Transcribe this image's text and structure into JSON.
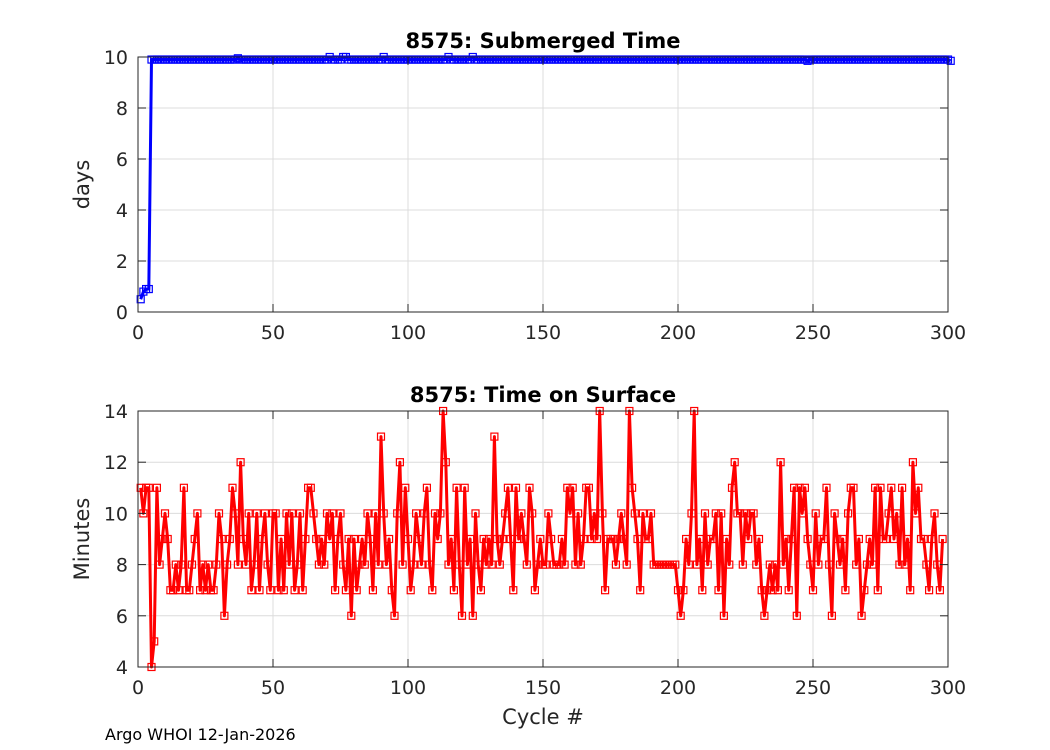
{
  "footer": "Argo WHOI 12-Jan-2026",
  "chart_data": [
    {
      "type": "line",
      "title": "8575: Submerged Time",
      "xlabel": "",
      "ylabel": "days",
      "xlim": [
        0,
        300
      ],
      "ylim": [
        0,
        10
      ],
      "xticks": [
        "0",
        "50",
        "100",
        "150",
        "200",
        "250",
        "300"
      ],
      "yticks": [
        "0",
        "2",
        "4",
        "6",
        "8",
        "10"
      ],
      "grid": true,
      "marker": "square",
      "color": "#0000ff",
      "series": [
        {
          "x": [
            1,
            2,
            3,
            4,
            5,
            6
          ],
          "y": [
            0.5,
            0.8,
            0.9,
            0.9,
            9.9,
            9.9
          ],
          "rest": {
            "x_start": 7,
            "x_end": 295,
            "values": [
              9.9,
              9.9,
              9.9,
              9.9,
              9.9,
              9.9,
              9.9,
              9.9,
              9.9,
              9.9,
              9.9,
              9.9,
              9.9,
              9.9,
              9.9,
              9.9,
              9.9,
              9.9,
              9.9,
              9.9,
              9.9,
              9.9,
              9.9,
              9.9,
              9.9,
              9.9,
              9.9,
              9.9,
              9.9,
              9.9,
              9.95,
              9.9,
              9.9,
              9.9,
              9.9,
              9.9,
              9.9,
              9.9,
              9.9,
              9.9,
              9.9,
              9.9,
              9.9,
              9.9,
              9.9,
              9.9,
              9.9,
              9.9,
              9.9,
              9.9,
              9.9,
              9.9,
              9.9,
              9.9,
              9.9,
              9.9,
              9.9,
              9.9,
              9.9,
              9.9,
              9.9,
              9.9,
              9.9,
              9.9,
              10.0,
              9.9,
              9.9,
              9.9,
              9.9,
              10.0,
              10.0,
              9.9,
              9.9,
              9.9,
              9.9,
              9.9,
              9.9,
              9.9,
              9.9,
              9.9,
              9.9,
              9.9,
              9.9,
              9.9,
              10.0,
              9.9,
              9.9,
              9.9,
              9.9,
              9.9,
              9.9,
              9.9,
              9.9,
              9.9,
              9.9,
              9.9,
              9.9,
              9.9,
              9.9,
              9.9,
              9.9,
              9.9,
              9.9,
              9.9,
              9.9,
              9.9,
              9.9,
              9.9,
              10.0,
              9.9,
              9.9,
              9.9,
              9.9,
              9.9,
              9.9,
              9.9,
              9.9,
              10.0,
              9.9,
              9.9,
              9.9,
              9.9,
              9.9,
              9.9,
              9.9,
              9.9,
              9.9,
              9.9,
              9.9,
              9.9,
              9.9,
              9.9,
              9.9,
              9.9,
              9.9,
              9.9,
              9.9,
              9.9,
              9.9,
              9.9,
              9.9,
              9.9,
              9.9,
              9.9,
              9.9,
              9.9,
              9.9,
              9.9,
              9.9,
              9.9,
              9.9,
              9.9,
              9.9,
              9.9,
              9.9,
              9.9,
              9.9,
              9.9,
              9.9,
              9.9,
              9.9,
              9.9,
              9.9,
              9.9,
              9.9,
              9.9,
              9.9,
              9.9,
              9.9,
              9.9,
              9.9,
              9.9,
              9.9,
              9.9,
              9.9,
              9.9,
              9.9,
              9.9,
              9.9,
              9.9,
              9.9,
              9.9,
              9.9,
              9.9,
              9.9,
              9.9,
              9.9,
              9.9,
              9.9,
              9.9,
              9.9,
              9.9,
              9.9,
              9.9,
              9.9,
              9.9,
              9.9,
              9.9,
              9.9,
              9.9,
              9.9,
              9.9,
              9.9,
              9.9,
              9.9,
              9.9,
              9.9,
              9.9,
              9.9,
              9.9,
              9.9,
              9.9,
              9.9,
              9.9,
              9.9,
              9.9,
              9.9,
              9.9,
              9.9,
              9.9,
              9.9,
              9.9,
              9.9,
              9.9,
              9.9,
              9.9,
              9.9,
              9.9,
              9.9,
              9.9,
              9.9,
              9.9,
              9.9,
              9.9,
              9.9,
              9.9,
              9.9,
              9.9,
              9.9,
              9.9,
              9.9,
              9.85,
              9.9,
              9.9,
              9.9,
              9.9,
              9.9,
              9.9,
              9.9,
              9.9,
              9.9,
              9.9,
              9.9,
              9.9,
              9.9,
              9.9,
              9.9,
              9.9,
              9.9,
              9.9,
              9.9,
              9.9,
              9.9,
              9.9,
              9.9,
              9.9,
              9.9,
              9.9,
              9.9,
              9.9,
              9.9,
              9.9,
              9.9,
              9.9,
              9.9,
              9.9,
              9.9,
              9.9,
              9.9,
              9.9,
              9.9,
              9.9,
              9.9,
              9.9,
              9.9,
              9.9,
              9.9,
              9.9,
              9.9,
              9.9,
              9.9,
              9.9,
              9.9,
              9.9,
              9.85
            ]
          }
        }
      ]
    },
    {
      "type": "line",
      "title": "8575: Time on Surface",
      "xlabel": "Cycle #",
      "ylabel": "Minutes",
      "xlim": [
        0,
        300
      ],
      "ylim": [
        4,
        14
      ],
      "xticks": [
        "0",
        "50",
        "100",
        "150",
        "200",
        "250",
        "300"
      ],
      "yticks": [
        "4",
        "6",
        "8",
        "10",
        "12",
        "14"
      ],
      "grid": true,
      "marker": "square",
      "color": "#ff0000",
      "series": [
        {
          "x_start": 1,
          "values": [
            11,
            10,
            11,
            11,
            4,
            5,
            11,
            8,
            9,
            10,
            9,
            7,
            7,
            8,
            7,
            8,
            11,
            7,
            7,
            8,
            9,
            10,
            7,
            8,
            7,
            8,
            7,
            7,
            8,
            10,
            9,
            6,
            8,
            9,
            11,
            10,
            8,
            12,
            9,
            8,
            10,
            7,
            8,
            10,
            7,
            9,
            10,
            8,
            7,
            10,
            10,
            7,
            9,
            7,
            10,
            8,
            10,
            7,
            8,
            10,
            7,
            9,
            11,
            11,
            10,
            9,
            8,
            9,
            8,
            10,
            9,
            10,
            7,
            9,
            10,
            8,
            7,
            9,
            6,
            9,
            7,
            8,
            9,
            8,
            10,
            9,
            7,
            10,
            8,
            13,
            10,
            8,
            9,
            7,
            6,
            10,
            12,
            8,
            11,
            9,
            7,
            8,
            10,
            9,
            8,
            10,
            11,
            8,
            7,
            10,
            9,
            10,
            14,
            12,
            8,
            9,
            7,
            11,
            8,
            6,
            11,
            8,
            9,
            6,
            10,
            8,
            7,
            9,
            8,
            9,
            8,
            13,
            9,
            8,
            9,
            10,
            11,
            9,
            7,
            11,
            9,
            10,
            9,
            8,
            11,
            10,
            7,
            8,
            9,
            8,
            8,
            10,
            9,
            8,
            8,
            8,
            9,
            8,
            11,
            10,
            11,
            8,
            10,
            8,
            9,
            11,
            11,
            9,
            10,
            9,
            14,
            10,
            7,
            9,
            9,
            9,
            8,
            9,
            10,
            9,
            8,
            14,
            11,
            10,
            9,
            7,
            10,
            9,
            9,
            10,
            8,
            8,
            8,
            8,
            8,
            8,
            8,
            8,
            8,
            7,
            6,
            7,
            9,
            8,
            10,
            14,
            8,
            9,
            7,
            10,
            8,
            9,
            9,
            10,
            7,
            10,
            6,
            9,
            8,
            11,
            12,
            10,
            10,
            8,
            10,
            9,
            10,
            10,
            8,
            9,
            7,
            6,
            7,
            8,
            7,
            8,
            7,
            12,
            8,
            9,
            7,
            9,
            11,
            6,
            11,
            10,
            11,
            9,
            8,
            7,
            10,
            8,
            9,
            9,
            11,
            8,
            6,
            10,
            9,
            8,
            9,
            7,
            10,
            11,
            11,
            8,
            9,
            6,
            7,
            8,
            9,
            8,
            11,
            7,
            11,
            9,
            9,
            10,
            11,
            9,
            10,
            8,
            11,
            8,
            9,
            7,
            12,
            10,
            11,
            9,
            9,
            8,
            7,
            9,
            10,
            8,
            7,
            9
          ]
        }
      ]
    }
  ]
}
